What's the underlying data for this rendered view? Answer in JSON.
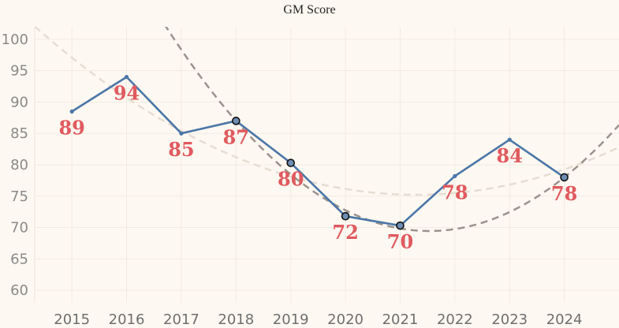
{
  "chart_data": {
    "type": "line",
    "title": "GM Score",
    "xlabel": "",
    "ylabel": "",
    "categories": [
      "2015",
      "2016",
      "2017",
      "2018",
      "2019",
      "2020",
      "2021",
      "2022",
      "2023",
      "2024"
    ],
    "series": [
      {
        "values": [
          88.5,
          94,
          85,
          87,
          80.3,
          71.8,
          70.3,
          78.2,
          84,
          78
        ],
        "data_labels": [
          "89",
          "94",
          "85",
          "87",
          "80",
          "72",
          "70",
          "78",
          "84",
          "78"
        ],
        "highlighted_years": [
          "2018",
          "2019",
          "2020",
          "2021",
          "2024"
        ],
        "color": "#4a76a8"
      }
    ],
    "trendlines": [
      {
        "style": "dashed",
        "color": "#e5ddd3",
        "kind": "quadratic",
        "points": [
          [
            2014.5,
            100.7
          ],
          [
            2019.5,
            77
          ],
          [
            2025,
            82.8
          ]
        ]
      },
      {
        "style": "dashed",
        "color": "#9a948c",
        "kind": "quadratic",
        "points": [
          [
            2018,
            87
          ],
          [
            2021.2,
            69.6
          ],
          [
            2024,
            78
          ]
        ]
      }
    ],
    "yticks": [
      60,
      65,
      70,
      75,
      80,
      85,
      90,
      95,
      100
    ],
    "ylim": [
      58,
      102
    ],
    "xlim": [
      2014.32,
      2025
    ],
    "grid": true,
    "colors": {
      "background": "#fdf8f1",
      "grid": "#f1ebe2",
      "line": "#4a76a8",
      "label": "#e05a5f",
      "marker_fill": "#6d8db4"
    }
  }
}
